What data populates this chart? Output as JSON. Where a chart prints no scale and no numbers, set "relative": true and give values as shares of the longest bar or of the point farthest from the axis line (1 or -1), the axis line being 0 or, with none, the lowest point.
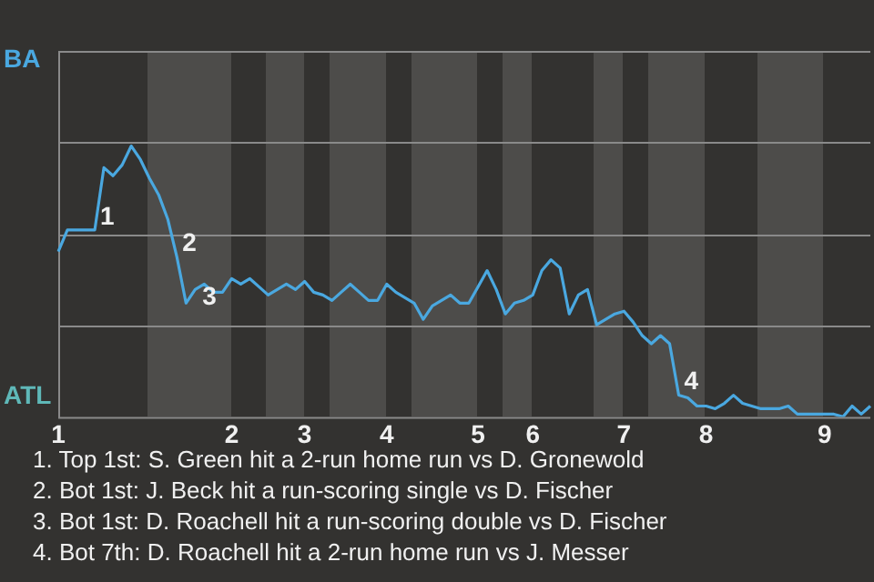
{
  "chart_data": {
    "type": "line",
    "relative": true,
    "categories": [
      "1",
      null,
      null,
      null,
      null,
      null,
      null,
      null,
      null,
      null,
      null,
      null,
      null,
      null,
      null,
      null,
      null,
      null,
      null,
      "2",
      null,
      null,
      null,
      null,
      null,
      null,
      null,
      "3",
      null,
      null,
      null,
      null,
      null,
      null,
      null,
      null,
      "4",
      null,
      null,
      null,
      null,
      null,
      null,
      null,
      null,
      null,
      "5",
      null,
      null,
      null,
      null,
      null,
      "6",
      null,
      null,
      null,
      null,
      null,
      null,
      null,
      null,
      null,
      "7",
      null,
      null,
      null,
      null,
      null,
      null,
      null,
      null,
      "8",
      null,
      null,
      null,
      null,
      null,
      null,
      null,
      null,
      null,
      null,
      null,
      null,
      "9",
      null,
      null,
      null,
      null,
      null
    ],
    "series": [
      {
        "color": "#4aa8e0",
        "values": [
          0.61,
          0.69,
          0.69,
          0.69,
          0.69,
          0.92,
          0.89,
          0.93,
          1,
          0.95,
          0.88,
          0.82,
          0.73,
          0.59,
          0.42,
          0.47,
          0.49,
          0.46,
          0.46,
          0.51,
          0.49,
          0.51,
          0.48,
          0.45,
          0.47,
          0.49,
          0.47,
          0.5,
          0.46,
          0.45,
          0.43,
          0.46,
          0.49,
          0.46,
          0.43,
          0.43,
          0.49,
          0.46,
          0.44,
          0.42,
          0.36,
          0.41,
          0.43,
          0.45,
          0.42,
          0.42,
          0.48,
          0.54,
          0.47,
          0.38,
          0.42,
          0.43,
          0.45,
          0.54,
          0.58,
          0.55,
          0.38,
          0.45,
          0.47,
          0.34,
          0.36,
          0.38,
          0.39,
          0.35,
          0.3,
          0.27,
          0.3,
          0.27,
          0.08,
          0.07,
          0.04,
          0.04,
          0.03,
          0.05,
          0.08,
          0.05,
          0.04,
          0.03,
          0.03,
          0.03,
          0.04,
          0.01,
          0.01,
          0.01,
          0.01,
          0.01,
          0,
          0.04,
          0.01,
          0.04
        ]
      }
    ],
    "marker": "none",
    "ref_lines": [
      {
        "axis": "y",
        "value": 0.338
      },
      {
        "axis": "y",
        "value": 0.676
      },
      {
        "axis": "y",
        "value": 1.014
      }
    ],
    "annotations": [
      "BA",
      "ATL",
      "1",
      "2",
      "3",
      "4",
      "1. Top 1st: S. Green hit a 2-run home run vs D. Gronewold",
      "2. Bot 1st: J. Beck hit a run-scoring single vs D. Fischer",
      "3. Bot 1st: D. Roachell hit a run-scoring double vs D. Fischer",
      "4. Bot 7th: D. Roachell hit a 2-run home run vs J. Messer"
    ]
  }
}
